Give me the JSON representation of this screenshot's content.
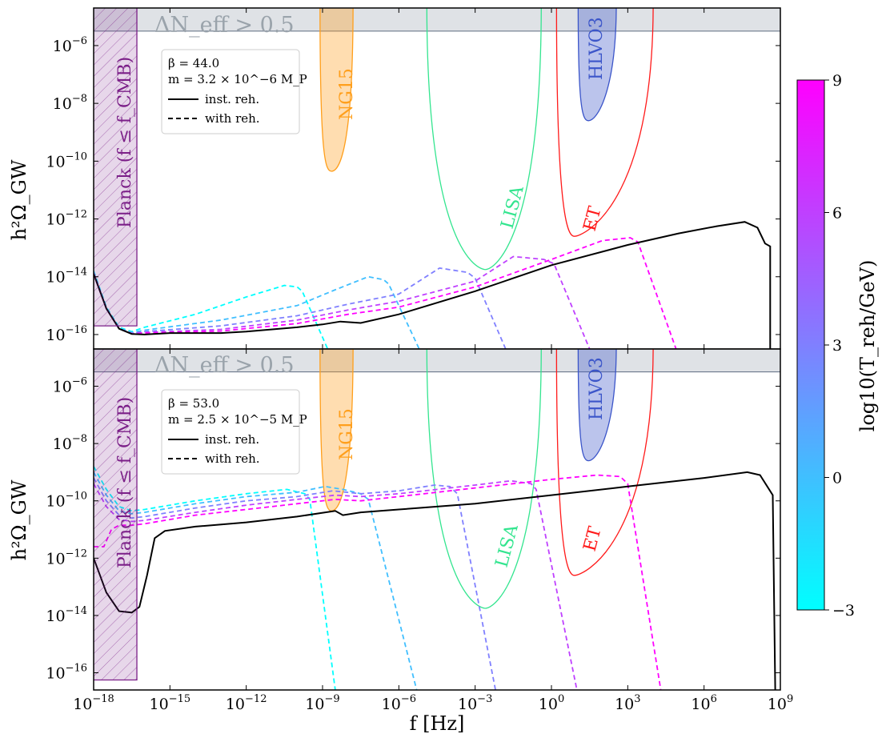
{
  "chart_data": {
    "type": "line",
    "xlabel": "f [Hz]",
    "xscale": "log",
    "yscale": "log",
    "xlim_log10": [
      -18,
      9
    ],
    "x_ticks": [
      "10^-18",
      "10^-15",
      "10^-12",
      "10^-9",
      "10^-6",
      "10^-3",
      "10^0",
      "10^3",
      "10^6",
      "10^9"
    ],
    "colors": {
      "tmin": "#00ffff",
      "tmax": "#ff00ff",
      "inst": "#000000",
      "lisa": "#33e58f",
      "et": "#ff1a1a",
      "ng15": "#ff9f1c",
      "hlvo3": "#3b55c9",
      "planck": "#7b1f88",
      "neff": "#c9cfd6",
      "neff_text": "#9aa3ab"
    },
    "colorbar": {
      "label": "log10(T_reh/GeV)",
      "ticks": [
        "9",
        "6",
        "3",
        "0",
        "−3"
      ],
      "range": [
        -3,
        9
      ]
    },
    "panels": [
      {
        "ylabel": "h²Ω_GW",
        "ylim_log10": [
          -16.5,
          -4.7
        ],
        "y_ticks": [
          "10^-6",
          "10^-8",
          "10^-10",
          "10^-12",
          "10^-14",
          "10^-16"
        ],
        "neff_label": "ΔN_eff > 0.5",
        "neff_level_log10": -5.5,
        "legend": {
          "beta": "β = 44.0",
          "mass": "m = 3.2 × 10^−6 M_P",
          "solid": "inst. reh.",
          "dashed": "with reh."
        },
        "labels": {
          "planck": "Planck (f ≤ f_CMB)",
          "ng15": "NG15",
          "hlvo3": "HLVO3",
          "lisa": "LISA",
          "et": "ET"
        },
        "planck": {
          "x_log10": [
            -18,
            -16.3
          ],
          "bottom_log10": -15.7
        },
        "ng15": {
          "x_log10": [
            -9.1,
            -7.8
          ],
          "min_x_log10": -8.65,
          "min_log10": -10.35
        },
        "hlvo3": {
          "x_log10": [
            1.05,
            2.55
          ],
          "min_x_log10": 1.45,
          "min_log10": -8.6
        },
        "lisa": {
          "x_log10": [
            -4.9,
            -0.4
          ],
          "min_x_log10": -2.6,
          "min_log10": -13.75
        },
        "et": {
          "x_log10": [
            0.2,
            4.0
          ],
          "min_x_log10": 0.9,
          "min_log10": -12.6
        },
        "inst_reh": [
          [
            -18,
            -13.9
          ],
          [
            -17.5,
            -15.1
          ],
          [
            -17,
            -15.8
          ],
          [
            -16.5,
            -15.98
          ],
          [
            -16,
            -16.0
          ],
          [
            -15,
            -15.95
          ],
          [
            -13,
            -15.95
          ],
          [
            -12,
            -15.9
          ],
          [
            -10,
            -15.75
          ],
          [
            -9,
            -15.65
          ],
          [
            -8.3,
            -15.55
          ],
          [
            -7.5,
            -15.6
          ],
          [
            -6,
            -15.3
          ],
          [
            -3,
            -14.5
          ],
          [
            0,
            -13.6
          ],
          [
            3,
            -12.9
          ],
          [
            5,
            -12.5
          ],
          [
            6.5,
            -12.25
          ],
          [
            7.6,
            -12.1
          ],
          [
            8.1,
            -12.3
          ],
          [
            8.4,
            -12.85
          ],
          [
            8.6,
            -12.95
          ],
          [
            8.6,
            -16.5
          ]
        ],
        "with_reh": [
          {
            "log10_treh": -3,
            "points": [
              [
                -18,
                -13.8
              ],
              [
                -17.5,
                -15.05
              ],
              [
                -17,
                -15.75
              ],
              [
                -16.5,
                -15.9
              ],
              [
                -16,
                -15.75
              ],
              [
                -14,
                -15.3
              ],
              [
                -12,
                -14.7
              ],
              [
                -10.5,
                -14.3
              ],
              [
                -10,
                -14.35
              ],
              [
                -9.8,
                -14.5
              ],
              [
                -8.8,
                -16.5
              ]
            ]
          },
          {
            "log10_treh": 0,
            "points": [
              [
                -18,
                -13.85
              ],
              [
                -17.5,
                -15.1
              ],
              [
                -17,
                -15.78
              ],
              [
                -16.5,
                -15.93
              ],
              [
                -16,
                -15.85
              ],
              [
                -13,
                -15.5
              ],
              [
                -10,
                -15.0
              ],
              [
                -8.5,
                -14.45
              ],
              [
                -7.2,
                -14.0
              ],
              [
                -6.6,
                -14.1
              ],
              [
                -6.4,
                -14.25
              ],
              [
                -5.2,
                -16.5
              ]
            ]
          },
          {
            "log10_treh": 3,
            "points": [
              [
                -18,
                -13.85
              ],
              [
                -17.5,
                -15.1
              ],
              [
                -17,
                -15.8
              ],
              [
                -16.5,
                -15.95
              ],
              [
                -16,
                -15.9
              ],
              [
                -13,
                -15.7
              ],
              [
                -10,
                -15.35
              ],
              [
                -8,
                -14.95
              ],
              [
                -6,
                -14.6
              ],
              [
                -4.4,
                -13.7
              ],
              [
                -3.3,
                -13.85
              ],
              [
                -3.0,
                -14.05
              ],
              [
                -1.8,
                -16.5
              ]
            ]
          },
          {
            "log10_treh": 6,
            "points": [
              [
                -18,
                -13.9
              ],
              [
                -17.5,
                -15.1
              ],
              [
                -17,
                -15.8
              ],
              [
                -16.5,
                -15.97
              ],
              [
                -16,
                -15.93
              ],
              [
                -13,
                -15.82
              ],
              [
                -10,
                -15.5
              ],
              [
                -8,
                -15.15
              ],
              [
                -6,
                -14.85
              ],
              [
                -3,
                -14.15
              ],
              [
                -1.5,
                -13.3
              ],
              [
                -0.3,
                -13.4
              ],
              [
                0.1,
                -13.55
              ],
              [
                1.5,
                -16.5
              ]
            ]
          },
          {
            "log10_treh": 9,
            "points": [
              [
                -18,
                -13.9
              ],
              [
                -17.5,
                -15.1
              ],
              [
                -17,
                -15.8
              ],
              [
                -16.5,
                -15.98
              ],
              [
                -16,
                -15.95
              ],
              [
                -13,
                -15.88
              ],
              [
                -10,
                -15.62
              ],
              [
                -8,
                -15.3
              ],
              [
                -6,
                -15.05
              ],
              [
                -3,
                -14.35
              ],
              [
                0,
                -13.4
              ],
              [
                2,
                -12.75
              ],
              [
                3.1,
                -12.65
              ],
              [
                3.4,
                -12.8
              ],
              [
                4.9,
                -16.5
              ]
            ]
          }
        ]
      },
      {
        "ylabel": "h²Ω_GW",
        "ylim_log10": [
          -16.6,
          -4.7
        ],
        "y_ticks": [
          "10^-6",
          "10^-8",
          "10^-10",
          "10^-12",
          "10^-14",
          "10^-16"
        ],
        "neff_label": "ΔN_eff > 0.5",
        "neff_level_log10": -5.5,
        "legend": {
          "beta": "β = 53.0",
          "mass": "m = 2.5 × 10^−5 M_P",
          "solid": "inst. reh.",
          "dashed": "with reh."
        },
        "labels": {
          "planck": "Planck (f ≤ f_CMB)",
          "ng15": "NG15",
          "hlvo3": "HLVO3",
          "lisa": "LISA",
          "et": "ET"
        },
        "planck": {
          "x_log10": [
            -18,
            -16.3
          ],
          "bottom_log10": -16.25
        },
        "ng15": {
          "x_log10": [
            -9.1,
            -7.8
          ],
          "min_x_log10": -8.65,
          "min_log10": -10.35
        },
        "hlvo3": {
          "x_log10": [
            1.05,
            2.55
          ],
          "min_x_log10": 1.45,
          "min_log10": -8.6
        },
        "lisa": {
          "x_log10": [
            -4.9,
            -0.4
          ],
          "min_x_log10": -2.6,
          "min_log10": -13.75
        },
        "et": {
          "x_log10": [
            0.2,
            4.0
          ],
          "min_x_log10": 0.9,
          "min_log10": -12.6
        },
        "inst_reh": [
          [
            -18,
            -12.0
          ],
          [
            -17.5,
            -13.2
          ],
          [
            -17,
            -13.85
          ],
          [
            -16.5,
            -13.9
          ],
          [
            -16.2,
            -13.7
          ],
          [
            -15.9,
            -12.6
          ],
          [
            -15.6,
            -11.3
          ],
          [
            -15.2,
            -11.05
          ],
          [
            -14,
            -10.9
          ],
          [
            -12,
            -10.75
          ],
          [
            -10,
            -10.55
          ],
          [
            -8.5,
            -10.35
          ],
          [
            -8.2,
            -10.5
          ],
          [
            -7.5,
            -10.4
          ],
          [
            -6,
            -10.3
          ],
          [
            -3,
            -10.1
          ],
          [
            0,
            -9.8
          ],
          [
            3,
            -9.5
          ],
          [
            6,
            -9.2
          ],
          [
            7.7,
            -9.0
          ],
          [
            8.2,
            -9.1
          ],
          [
            8.7,
            -9.8
          ],
          [
            8.8,
            -16.6
          ]
        ],
        "with_reh": [
          {
            "log10_treh": -3,
            "points": [
              [
                -18,
                -8.8
              ],
              [
                -17.5,
                -9.6
              ],
              [
                -17,
                -10.2
              ],
              [
                -16.5,
                -10.35
              ],
              [
                -16,
                -10.3
              ],
              [
                -14,
                -10.0
              ],
              [
                -12,
                -9.75
              ],
              [
                -10.4,
                -9.6
              ],
              [
                -9.7,
                -9.75
              ],
              [
                -9.5,
                -9.95
              ],
              [
                -8.5,
                -16.6
              ]
            ]
          },
          {
            "log10_treh": 0,
            "points": [
              [
                -18,
                -9.0
              ],
              [
                -17.5,
                -9.8
              ],
              [
                -17,
                -10.35
              ],
              [
                -16.5,
                -10.45
              ],
              [
                -16,
                -10.4
              ],
              [
                -14,
                -10.1
              ],
              [
                -12,
                -9.85
              ],
              [
                -10,
                -9.7
              ],
              [
                -8.9,
                -9.5
              ],
              [
                -8.2,
                -9.6
              ],
              [
                -7.5,
                -9.75
              ],
              [
                -7.2,
                -9.95
              ],
              [
                -5.3,
                -16.6
              ]
            ]
          },
          {
            "log10_treh": 3,
            "points": [
              [
                -18,
                -9.2
              ],
              [
                -17.5,
                -10.0
              ],
              [
                -17,
                -10.5
              ],
              [
                -16.5,
                -10.6
              ],
              [
                -16,
                -10.55
              ],
              [
                -14,
                -10.25
              ],
              [
                -12,
                -10.0
              ],
              [
                -10,
                -9.85
              ],
              [
                -8.6,
                -9.65
              ],
              [
                -7.5,
                -9.75
              ],
              [
                -6,
                -9.65
              ],
              [
                -4.6,
                -9.45
              ],
              [
                -4.0,
                -9.5
              ],
              [
                -3.7,
                -9.75
              ],
              [
                -2.2,
                -16.6
              ]
            ]
          },
          {
            "log10_treh": 6,
            "points": [
              [
                -18,
                -9.4
              ],
              [
                -17.5,
                -10.2
              ],
              [
                -17,
                -10.65
              ],
              [
                -16.5,
                -10.72
              ],
              [
                -16,
                -10.68
              ],
              [
                -14,
                -10.4
              ],
              [
                -12,
                -10.15
              ],
              [
                -10,
                -9.95
              ],
              [
                -8.5,
                -9.8
              ],
              [
                -7.5,
                -9.85
              ],
              [
                -6,
                -9.75
              ],
              [
                -3,
                -9.45
              ],
              [
                -1.6,
                -9.3
              ],
              [
                -0.8,
                -9.4
              ],
              [
                -0.6,
                -9.6
              ],
              [
                1.0,
                -16.6
              ]
            ]
          },
          {
            "log10_treh": 9,
            "points": [
              [
                -18,
                -11.6
              ],
              [
                -17.6,
                -11.6
              ],
              [
                -17.3,
                -11.0
              ],
              [
                -17,
                -10.85
              ],
              [
                -16.5,
                -10.85
              ],
              [
                -16,
                -10.8
              ],
              [
                -14,
                -10.5
              ],
              [
                -12,
                -10.3
              ],
              [
                -10,
                -10.1
              ],
              [
                -8.5,
                -9.95
              ],
              [
                -7.5,
                -10.0
              ],
              [
                -6,
                -9.85
              ],
              [
                -3,
                -9.55
              ],
              [
                0,
                -9.25
              ],
              [
                1.8,
                -9.1
              ],
              [
                2.7,
                -9.15
              ],
              [
                3.0,
                -9.4
              ],
              [
                4.3,
                -16.6
              ]
            ]
          }
        ]
      }
    ]
  }
}
